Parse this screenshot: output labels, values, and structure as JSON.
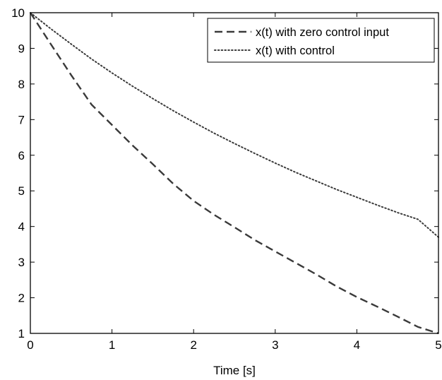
{
  "chart_data": {
    "type": "line",
    "title": "",
    "xlabel": "Time [s]",
    "ylabel": "",
    "xlim": [
      0,
      5
    ],
    "ylim": [
      1,
      10
    ],
    "xticks": [
      0,
      1,
      2,
      3,
      4,
      5
    ],
    "yticks": [
      1,
      2,
      3,
      4,
      5,
      6,
      7,
      8,
      9,
      10
    ],
    "grid": false,
    "legend_position": "top-right",
    "x": [
      0,
      0.25,
      0.5,
      0.75,
      1,
      1.25,
      1.5,
      1.75,
      2,
      2.25,
      2.5,
      2.75,
      3,
      3.25,
      3.5,
      3.75,
      4,
      4.25,
      4.5,
      4.75,
      5
    ],
    "series": [
      {
        "name": "x(t) with zero control input",
        "style": "dashed",
        "color": "#3a3a3a",
        "values": [
          10,
          9.12,
          8.25,
          7.42,
          6.85,
          6.28,
          5.75,
          5.2,
          4.72,
          4.33,
          3.98,
          3.62,
          3.3,
          2.98,
          2.66,
          2.32,
          2.02,
          1.75,
          1.47,
          1.18,
          1.0
        ]
      },
      {
        "name": "x(t) with control",
        "style": "dotted",
        "color": "#3a3a3a",
        "values": [
          10,
          9.55,
          9.12,
          8.7,
          8.31,
          7.94,
          7.59,
          7.25,
          6.93,
          6.62,
          6.33,
          6.05,
          5.78,
          5.52,
          5.28,
          5.04,
          4.82,
          4.6,
          4.39,
          4.2,
          3.7
        ]
      }
    ]
  }
}
